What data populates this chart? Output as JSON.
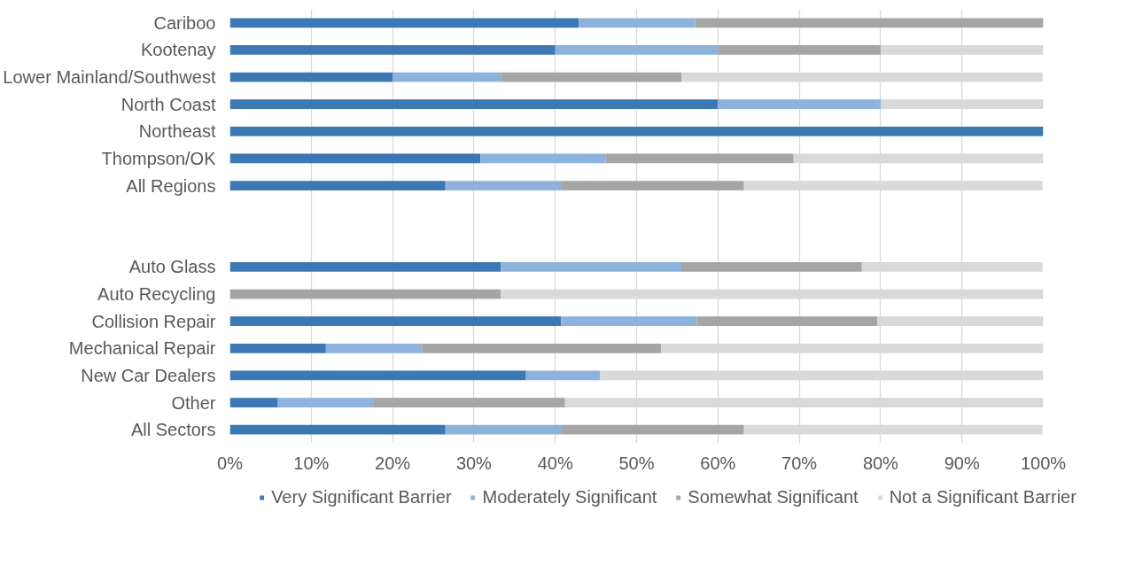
{
  "chart_data": {
    "type": "bar",
    "orientation": "horizontal",
    "stacked": true,
    "categories": [
      "Cariboo",
      "Kootenay",
      "Lower Mainland/Southwest",
      "North Coast",
      "Northeast",
      "Thompson/OK",
      "All Regions",
      null,
      null,
      "Auto Glass",
      "Auto Recycling",
      "Collision Repair",
      "Mechanical Repair",
      "New Car Dealers",
      "Other",
      "All Sectors"
    ],
    "series": [
      {
        "name": "Very Significant Barrier",
        "color": "#3c78b4",
        "values": [
          42.9,
          40,
          20,
          60,
          100,
          30.8,
          26.5,
          null,
          null,
          33.3,
          0,
          40.7,
          11.8,
          36.4,
          5.9,
          26.5
        ]
      },
      {
        "name": "Moderately Significant",
        "color": "#8db3dc",
        "values": [
          14.3,
          20,
          13.3,
          20,
          0,
          15.4,
          14.3,
          null,
          null,
          22.2,
          0,
          16.7,
          11.8,
          9.1,
          11.8,
          14.3
        ]
      },
      {
        "name": "Somewhat Significant",
        "color": "#a5a5a5",
        "values": [
          42.9,
          20,
          22.2,
          0,
          0,
          23.1,
          22.4,
          null,
          null,
          22.2,
          33.3,
          22.2,
          29.4,
          0,
          23.5,
          22.4
        ]
      },
      {
        "name": "Not a Significant Barrier",
        "color": "#d9d9d9",
        "values": [
          0,
          20,
          44.4,
          20,
          0,
          30.8,
          36.7,
          null,
          null,
          22.2,
          66.7,
          20.4,
          47.1,
          54.5,
          58.8,
          36.7
        ]
      }
    ],
    "xlim": [
      0,
      100
    ],
    "xticks": [
      {
        "value": 0,
        "label": "0%"
      },
      {
        "value": 10,
        "label": "10%"
      },
      {
        "value": 20,
        "label": "20%"
      },
      {
        "value": 30,
        "label": "30%"
      },
      {
        "value": 40,
        "label": "40%"
      },
      {
        "value": 50,
        "label": "50%"
      },
      {
        "value": 60,
        "label": "60%"
      },
      {
        "value": 70,
        "label": "70%"
      },
      {
        "value": 80,
        "label": "80%"
      },
      {
        "value": 90,
        "label": "90%"
      },
      {
        "value": 100,
        "label": "100%"
      }
    ],
    "grid": "x",
    "legend": "bottom"
  }
}
